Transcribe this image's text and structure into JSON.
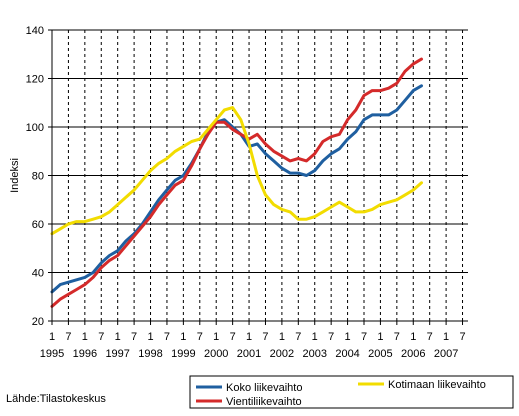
{
  "chart_data": {
    "type": "line",
    "title": "",
    "xlabel": "",
    "ylabel": "Indeksi",
    "ylim": [
      20,
      140
    ],
    "yticks": [
      20,
      40,
      60,
      80,
      100,
      120,
      140
    ],
    "x_start": "1995-01",
    "x_end": "2007-09",
    "x_tick_months": [
      "1",
      "7"
    ],
    "year_labels": [
      "1995",
      "1996",
      "1997",
      "1998",
      "1999",
      "2000",
      "2001",
      "2002",
      "2003",
      "2004",
      "2005",
      "2006",
      "2007"
    ],
    "grid": "vertical dashed lines at January and July, horizontal solid lines at y ticks",
    "legend_position": "bottom-right, boxed",
    "series": [
      {
        "name": "Koko liikevaihto",
        "color": "#1f5fa0",
        "points": [
          [
            "1995-01",
            32
          ],
          [
            "1995-04",
            35
          ],
          [
            "1995-07",
            36
          ],
          [
            "1995-10",
            37
          ],
          [
            "1996-01",
            38
          ],
          [
            "1996-04",
            40
          ],
          [
            "1996-07",
            44
          ],
          [
            "1996-10",
            47
          ],
          [
            "1997-01",
            49
          ],
          [
            "1997-04",
            53
          ],
          [
            "1997-07",
            56
          ],
          [
            "1997-10",
            60
          ],
          [
            "1998-01",
            65
          ],
          [
            "1998-04",
            70
          ],
          [
            "1998-07",
            74
          ],
          [
            "1998-10",
            78
          ],
          [
            "1999-01",
            80
          ],
          [
            "1999-04",
            85
          ],
          [
            "1999-07",
            91
          ],
          [
            "1999-10",
            98
          ],
          [
            "2000-01",
            102
          ],
          [
            "2000-04",
            103
          ],
          [
            "2000-07",
            100
          ],
          [
            "2000-10",
            97
          ],
          [
            "2001-01",
            92
          ],
          [
            "2001-04",
            93
          ],
          [
            "2001-07",
            89
          ],
          [
            "2001-10",
            86
          ],
          [
            "2002-01",
            83
          ],
          [
            "2002-04",
            81
          ],
          [
            "2002-07",
            81
          ],
          [
            "2002-10",
            80
          ],
          [
            "2003-01",
            82
          ],
          [
            "2003-04",
            86
          ],
          [
            "2003-07",
            89
          ],
          [
            "2003-10",
            91
          ],
          [
            "2004-01",
            95
          ],
          [
            "2004-04",
            98
          ],
          [
            "2004-07",
            103
          ],
          [
            "2004-10",
            105
          ],
          [
            "2005-01",
            105
          ],
          [
            "2005-04",
            105
          ],
          [
            "2005-07",
            107
          ],
          [
            "2005-10",
            111
          ],
          [
            "2006-01",
            115
          ],
          [
            "2006-04",
            117
          ]
        ]
      },
      {
        "name": "Vientiliikevaihto",
        "color": "#d42a2a",
        "points": [
          [
            "1995-01",
            26
          ],
          [
            "1995-04",
            29
          ],
          [
            "1995-07",
            31
          ],
          [
            "1995-10",
            33
          ],
          [
            "1996-01",
            35
          ],
          [
            "1996-04",
            38
          ],
          [
            "1996-07",
            42
          ],
          [
            "1996-10",
            45
          ],
          [
            "1997-01",
            47
          ],
          [
            "1997-04",
            51
          ],
          [
            "1997-07",
            55
          ],
          [
            "1997-10",
            59
          ],
          [
            "1998-01",
            63
          ],
          [
            "1998-04",
            68
          ],
          [
            "1998-07",
            72
          ],
          [
            "1998-10",
            76
          ],
          [
            "1999-01",
            78
          ],
          [
            "1999-04",
            84
          ],
          [
            "1999-07",
            91
          ],
          [
            "1999-10",
            97
          ],
          [
            "2000-01",
            102
          ],
          [
            "2000-04",
            102
          ],
          [
            "2000-07",
            99
          ],
          [
            "2000-10",
            97
          ],
          [
            "2001-01",
            95
          ],
          [
            "2001-04",
            97
          ],
          [
            "2001-07",
            93
          ],
          [
            "2001-10",
            90
          ],
          [
            "2002-01",
            88
          ],
          [
            "2002-04",
            86
          ],
          [
            "2002-07",
            87
          ],
          [
            "2002-10",
            86
          ],
          [
            "2003-01",
            89
          ],
          [
            "2003-04",
            94
          ],
          [
            "2003-07",
            96
          ],
          [
            "2003-10",
            97
          ],
          [
            "2004-01",
            103
          ],
          [
            "2004-04",
            107
          ],
          [
            "2004-07",
            113
          ],
          [
            "2004-10",
            115
          ],
          [
            "2005-01",
            115
          ],
          [
            "2005-04",
            116
          ],
          [
            "2005-07",
            118
          ],
          [
            "2005-10",
            123
          ],
          [
            "2006-01",
            126
          ],
          [
            "2006-04",
            128
          ]
        ]
      },
      {
        "name": "Kotimaan liikevaihto",
        "color": "#f2dc00",
        "points": [
          [
            "1995-01",
            56
          ],
          [
            "1995-04",
            58
          ],
          [
            "1995-07",
            60
          ],
          [
            "1995-10",
            61
          ],
          [
            "1996-01",
            61
          ],
          [
            "1996-04",
            62
          ],
          [
            "1996-07",
            63
          ],
          [
            "1996-10",
            65
          ],
          [
            "1997-01",
            68
          ],
          [
            "1997-04",
            71
          ],
          [
            "1997-07",
            74
          ],
          [
            "1997-10",
            78
          ],
          [
            "1998-01",
            82
          ],
          [
            "1998-04",
            85
          ],
          [
            "1998-07",
            87
          ],
          [
            "1998-10",
            90
          ],
          [
            "1999-01",
            92
          ],
          [
            "1999-04",
            94
          ],
          [
            "1999-07",
            95
          ],
          [
            "1999-10",
            99
          ],
          [
            "2000-01",
            103
          ],
          [
            "2000-04",
            107
          ],
          [
            "2000-07",
            108
          ],
          [
            "2000-10",
            103
          ],
          [
            "2001-01",
            93
          ],
          [
            "2001-04",
            80
          ],
          [
            "2001-07",
            72
          ],
          [
            "2001-10",
            68
          ],
          [
            "2002-01",
            66
          ],
          [
            "2002-04",
            65
          ],
          [
            "2002-07",
            62
          ],
          [
            "2002-10",
            62
          ],
          [
            "2003-01",
            63
          ],
          [
            "2003-04",
            65
          ],
          [
            "2003-07",
            67
          ],
          [
            "2003-10",
            69
          ],
          [
            "2004-01",
            67
          ],
          [
            "2004-04",
            65
          ],
          [
            "2004-07",
            65
          ],
          [
            "2004-10",
            66
          ],
          [
            "2005-01",
            68
          ],
          [
            "2005-04",
            69
          ],
          [
            "2005-07",
            70
          ],
          [
            "2005-10",
            72
          ],
          [
            "2006-01",
            74
          ],
          [
            "2006-04",
            77
          ]
        ]
      }
    ]
  },
  "source_label": "Lähde:Tilastokeskus"
}
